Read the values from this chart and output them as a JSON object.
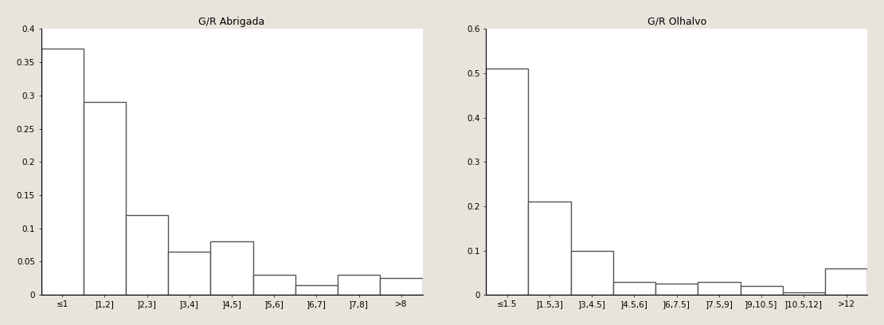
{
  "abrigada": {
    "title": "G/R Abrigada",
    "xlabel_labels": [
      "≤1",
      "]1,2]",
      "]2,3]",
      "]3,4]",
      "]4,5]",
      "]5,6]",
      "]6,7]",
      "]7,8]",
      ">8"
    ],
    "values": [
      0.37,
      0.29,
      0.12,
      0.065,
      0.08,
      0.03,
      0.015,
      0.03,
      0.025
    ],
    "ylim": [
      0,
      0.4
    ],
    "yticks": [
      0,
      0.05,
      0.1,
      0.15,
      0.2,
      0.25,
      0.3,
      0.35,
      0.4
    ]
  },
  "olhalvo": {
    "title": "G/R Olhalvo",
    "xlabel_labels": [
      "≤1.5",
      "]1.5,3]",
      "]3,4.5]",
      "]4.5,6]",
      "]6,7.5]",
      "]7.5,9]",
      "]9,10.5]",
      "]10.5,12]",
      ">12"
    ],
    "values": [
      0.51,
      0.21,
      0.1,
      0.03,
      0.025,
      0.03,
      0.02,
      0.005,
      0.06
    ],
    "ylim": [
      0,
      0.6
    ],
    "yticks": [
      0,
      0.1,
      0.2,
      0.3,
      0.4,
      0.5,
      0.6
    ]
  },
  "bar_color": "#ffffff",
  "edge_color": "#555555",
  "background_color": "#ffffff",
  "fig_background": "#e8e4dc",
  "title_fontsize": 9,
  "tick_fontsize": 7.5,
  "linewidth": 1.0
}
